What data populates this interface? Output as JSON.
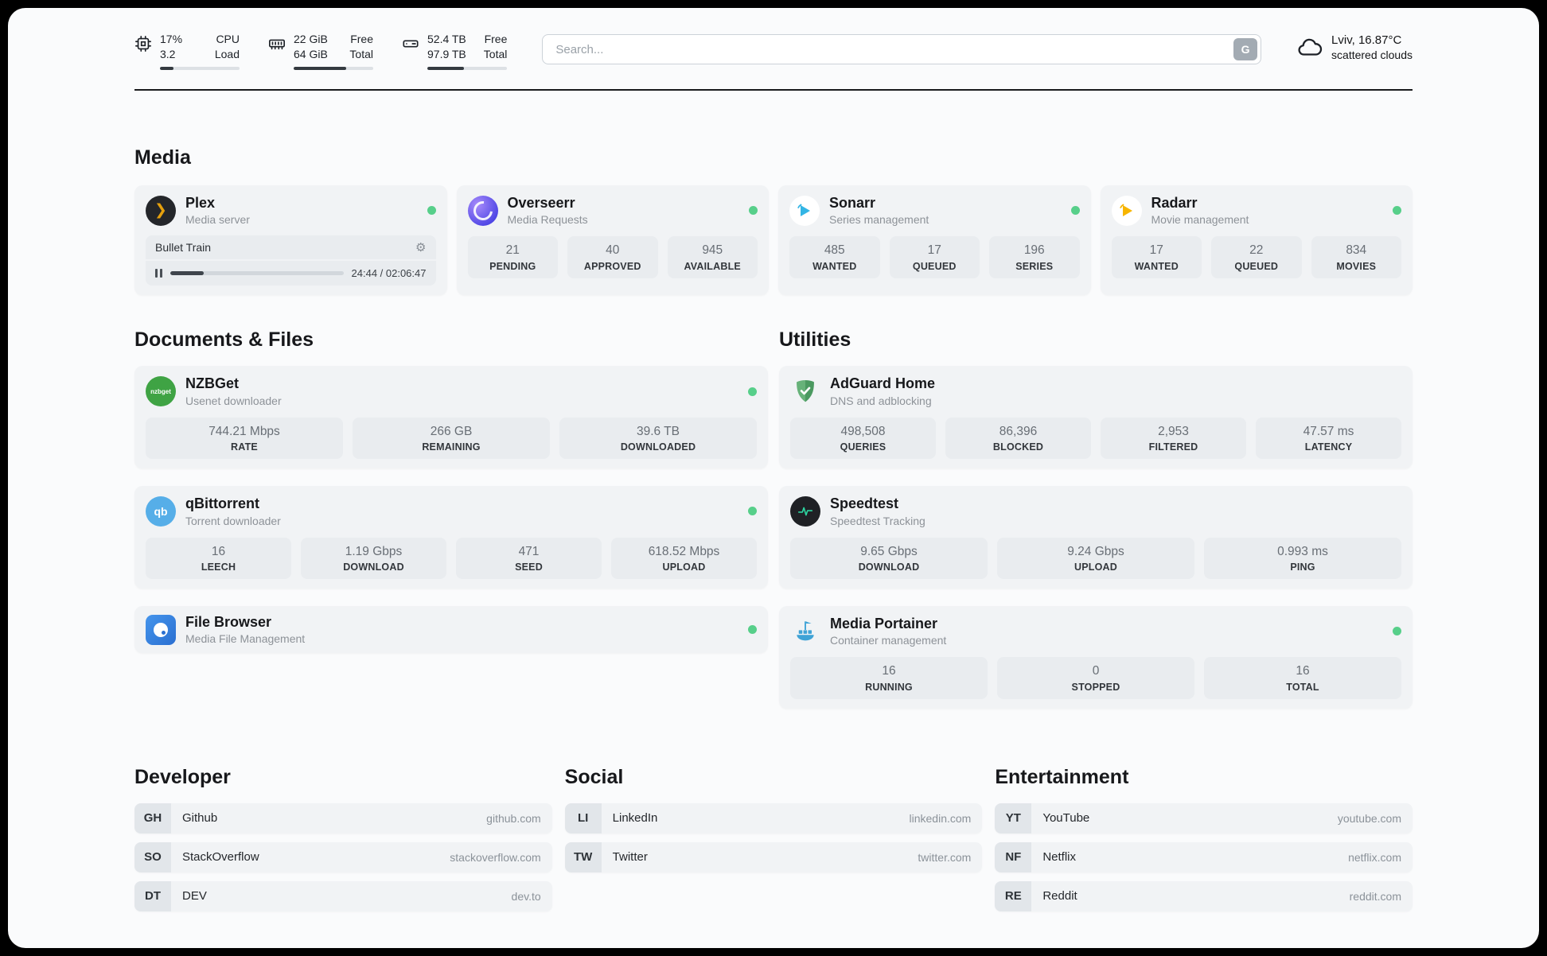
{
  "colors": {
    "status_online": "#57cf8a",
    "plex_gold": "#e5a00d",
    "sonarr_blue": "#33b5e5",
    "radarr_amber": "#f7b500",
    "nzbget_green": "#3fa344",
    "qbittorrent_blue": "#56aee8",
    "adguard_green": "#67b279",
    "speedtest_green": "#2dd4a0",
    "portainer_blue": "#3fa3d6"
  },
  "topbar": {
    "cpu": {
      "value_top": "17%",
      "value_bottom": "3.2",
      "label_top": "CPU",
      "label_bottom": "Load",
      "progress": 17
    },
    "ram": {
      "value_top": "22 GiB",
      "value_bottom": "64 GiB",
      "label_top": "Free",
      "label_bottom": "Total",
      "progress": 66
    },
    "disk": {
      "value_top": "52.4 TB",
      "value_bottom": "97.9 TB",
      "label_top": "Free",
      "label_bottom": "Total",
      "progress": 46
    },
    "search": {
      "placeholder": "Search...",
      "button_label": "G"
    },
    "weather": {
      "location": "Lviv, 16.87°C",
      "condition": "scattered clouds"
    }
  },
  "icons": {
    "gear": "⚙"
  },
  "media": {
    "heading": "Media",
    "plex": {
      "name": "Plex",
      "subtitle": "Media server",
      "icon_text": "❯",
      "now_playing": {
        "title": "Bullet Train",
        "time": "24:44 / 02:06:47",
        "progress": 19.5
      }
    },
    "overseerr": {
      "name": "Overseerr",
      "subtitle": "Media Requests",
      "stats": [
        {
          "value": "21",
          "label": "PENDING"
        },
        {
          "value": "40",
          "label": "APPROVED"
        },
        {
          "value": "945",
          "label": "AVAILABLE"
        }
      ]
    },
    "sonarr": {
      "name": "Sonarr",
      "subtitle": "Series management",
      "stats": [
        {
          "value": "485",
          "label": "WANTED"
        },
        {
          "value": "17",
          "label": "QUEUED"
        },
        {
          "value": "196",
          "label": "SERIES"
        }
      ]
    },
    "radarr": {
      "name": "Radarr",
      "subtitle": "Movie management",
      "stats": [
        {
          "value": "17",
          "label": "WANTED"
        },
        {
          "value": "22",
          "label": "QUEUED"
        },
        {
          "value": "834",
          "label": "MOVIES"
        }
      ]
    }
  },
  "documents": {
    "heading": "Documents & Files",
    "nzbget": {
      "name": "NZBGet",
      "subtitle": "Usenet downloader",
      "icon_text": "nzbget",
      "stats": [
        {
          "value": "744.21 Mbps",
          "label": "RATE"
        },
        {
          "value": "266 GB",
          "label": "REMAINING"
        },
        {
          "value": "39.6 TB",
          "label": "DOWNLOADED"
        }
      ]
    },
    "qbittorrent": {
      "name": "qBittorrent",
      "subtitle": "Torrent downloader",
      "icon_text": "qb",
      "stats": [
        {
          "value": "16",
          "label": "LEECH"
        },
        {
          "value": "1.19 Gbps",
          "label": "DOWNLOAD"
        },
        {
          "value": "471",
          "label": "SEED"
        },
        {
          "value": "618.52 Mbps",
          "label": "UPLOAD"
        }
      ]
    },
    "filebrowser": {
      "name": "File Browser",
      "subtitle": "Media File Management"
    }
  },
  "utilities": {
    "heading": "Utilities",
    "adguard": {
      "name": "AdGuard Home",
      "subtitle": "DNS and adblocking",
      "stats": [
        {
          "value": "498,508",
          "label": "QUERIES"
        },
        {
          "value": "86,396",
          "label": "BLOCKED"
        },
        {
          "value": "2,953",
          "label": "FILTERED"
        },
        {
          "value": "47.57 ms",
          "label": "LATENCY"
        }
      ]
    },
    "speedtest": {
      "name": "Speedtest",
      "subtitle": "Speedtest Tracking",
      "stats": [
        {
          "value": "9.65 Gbps",
          "label": "DOWNLOAD"
        },
        {
          "value": "9.24 Gbps",
          "label": "UPLOAD"
        },
        {
          "value": "0.993 ms",
          "label": "PING"
        }
      ]
    },
    "portainer": {
      "name": "Media Portainer",
      "subtitle": "Container management",
      "stats": [
        {
          "value": "16",
          "label": "RUNNING"
        },
        {
          "value": "0",
          "label": "STOPPED"
        },
        {
          "value": "16",
          "label": "TOTAL"
        }
      ]
    }
  },
  "bookmarks": {
    "developer": {
      "heading": "Developer",
      "items": [
        {
          "abbr": "GH",
          "name": "Github",
          "url": "github.com"
        },
        {
          "abbr": "SO",
          "name": "StackOverflow",
          "url": "stackoverflow.com"
        },
        {
          "abbr": "DT",
          "name": "DEV",
          "url": "dev.to"
        }
      ]
    },
    "social": {
      "heading": "Social",
      "items": [
        {
          "abbr": "LI",
          "name": "LinkedIn",
          "url": "linkedin.com"
        },
        {
          "abbr": "TW",
          "name": "Twitter",
          "url": "twitter.com"
        }
      ]
    },
    "entertainment": {
      "heading": "Entertainment",
      "items": [
        {
          "abbr": "YT",
          "name": "YouTube",
          "url": "youtube.com"
        },
        {
          "abbr": "NF",
          "name": "Netflix",
          "url": "netflix.com"
        },
        {
          "abbr": "RE",
          "name": "Reddit",
          "url": "reddit.com"
        }
      ]
    }
  }
}
